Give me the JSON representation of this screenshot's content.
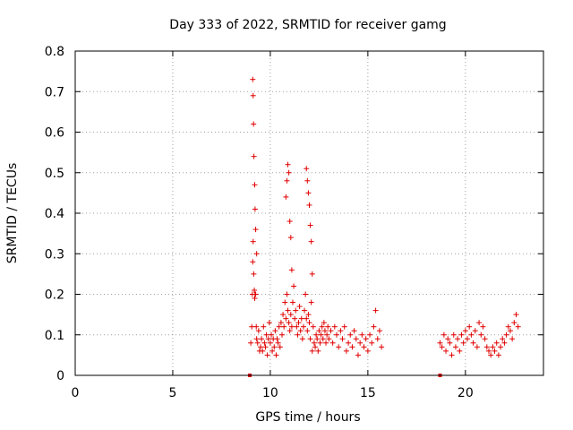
{
  "chart_data": {
    "type": "scatter",
    "title": "Day 333 of 2022, SRMTID for receiver gamg",
    "xlabel": "GPS time / hours",
    "ylabel": "SRMTID / TECUs",
    "xlim": [
      0,
      24
    ],
    "ylim": [
      0,
      0.8
    ],
    "xticks": [
      0,
      5,
      10,
      15,
      20
    ],
    "xtick_labels": [
      "0",
      "5",
      "10",
      "15",
      "20"
    ],
    "yticks": [
      0,
      0.1,
      0.2,
      0.3,
      0.4,
      0.5,
      0.6,
      0.7,
      0.8
    ],
    "ytick_labels": [
      "0",
      "0.1",
      "0.2",
      "0.3",
      "0.4",
      "0.5",
      "0.6",
      "0.7",
      "0.8"
    ],
    "grid": true,
    "marker_color": "#e00000",
    "series": [
      {
        "name": "SRMTID",
        "x": [
          9.0,
          9.05,
          9.08,
          9.1,
          9.12,
          9.15,
          9.18,
          9.2,
          9.22,
          9.25,
          9.28,
          9.3,
          9.35,
          9.4,
          9.45,
          9.5,
          9.55,
          9.6,
          9.65,
          9.7,
          9.75,
          9.8,
          9.85,
          9.9,
          9.95,
          10.0,
          10.05,
          10.1,
          10.15,
          10.2,
          10.25,
          10.3,
          10.35,
          10.4,
          10.45,
          10.5,
          10.55,
          10.6,
          10.65,
          10.7,
          10.75,
          10.8,
          10.85,
          10.9,
          10.95,
          11.0,
          11.05,
          11.1,
          11.15,
          11.2,
          11.25,
          11.3,
          11.35,
          11.4,
          11.45,
          11.5,
          11.55,
          11.6,
          11.65,
          11.7,
          11.75,
          11.8,
          11.85,
          11.9,
          11.95,
          12.0,
          12.05,
          12.1,
          12.15,
          12.2,
          12.25,
          12.3,
          12.35,
          12.4,
          12.45,
          12.5,
          12.55,
          12.6,
          12.65,
          12.7,
          12.75,
          12.8,
          12.85,
          12.9,
          12.95,
          13.0,
          13.1,
          13.2,
          13.3,
          13.4,
          13.5,
          13.6,
          13.7,
          13.8,
          13.9,
          14.0,
          14.1,
          14.2,
          14.3,
          14.4,
          14.5,
          14.6,
          14.7,
          14.8,
          14.9,
          15.0,
          15.1,
          15.2,
          15.3,
          15.4,
          15.5,
          15.6,
          15.7,
          18.7,
          18.8,
          18.9,
          19.0,
          19.1,
          19.2,
          19.3,
          19.4,
          19.5,
          19.6,
          19.7,
          19.8,
          19.9,
          20.0,
          20.1,
          20.2,
          20.3,
          20.4,
          20.5,
          20.6,
          20.7,
          20.8,
          20.9,
          21.0,
          21.1,
          21.2,
          21.3,
          21.4,
          21.5,
          21.6,
          21.7,
          21.8,
          21.9,
          22.0,
          22.1,
          22.2,
          22.3,
          22.4,
          22.5,
          22.6,
          22.7,
          9.1,
          9.12,
          9.14,
          9.16,
          9.2,
          9.22,
          9.25,
          9.3,
          10.8,
          10.85,
          10.9,
          10.95,
          11.0,
          11.05,
          11.1,
          11.85,
          11.9,
          11.95,
          12.0,
          12.05,
          12.1,
          12.15,
          8.95,
          18.7
        ],
        "y": [
          0.08,
          0.12,
          0.2,
          0.28,
          0.33,
          0.25,
          0.21,
          0.19,
          0.2,
          0.2,
          0.12,
          0.09,
          0.08,
          0.11,
          0.06,
          0.07,
          0.09,
          0.06,
          0.12,
          0.08,
          0.07,
          0.1,
          0.05,
          0.09,
          0.13,
          0.08,
          0.1,
          0.06,
          0.09,
          0.07,
          0.11,
          0.05,
          0.09,
          0.08,
          0.12,
          0.07,
          0.13,
          0.1,
          0.15,
          0.12,
          0.18,
          0.14,
          0.2,
          0.16,
          0.13,
          0.11,
          0.15,
          0.12,
          0.18,
          0.22,
          0.14,
          0.16,
          0.12,
          0.1,
          0.13,
          0.17,
          0.11,
          0.14,
          0.09,
          0.12,
          0.16,
          0.2,
          0.14,
          0.11,
          0.15,
          0.13,
          0.09,
          0.18,
          0.06,
          0.12,
          0.08,
          0.07,
          0.1,
          0.09,
          0.06,
          0.11,
          0.08,
          0.1,
          0.12,
          0.09,
          0.13,
          0.11,
          0.08,
          0.1,
          0.12,
          0.09,
          0.11,
          0.08,
          0.12,
          0.1,
          0.07,
          0.11,
          0.09,
          0.12,
          0.06,
          0.08,
          0.1,
          0.07,
          0.11,
          0.09,
          0.05,
          0.08,
          0.1,
          0.07,
          0.09,
          0.06,
          0.1,
          0.08,
          0.12,
          0.16,
          0.09,
          0.11,
          0.07,
          0.08,
          0.07,
          0.1,
          0.06,
          0.09,
          0.08,
          0.05,
          0.1,
          0.07,
          0.09,
          0.06,
          0.1,
          0.08,
          0.11,
          0.09,
          0.12,
          0.1,
          0.08,
          0.11,
          0.07,
          0.13,
          0.1,
          0.12,
          0.09,
          0.07,
          0.06,
          0.05,
          0.07,
          0.06,
          0.08,
          0.05,
          0.07,
          0.09,
          0.08,
          0.1,
          0.12,
          0.11,
          0.09,
          0.13,
          0.15,
          0.12,
          0.73,
          0.69,
          0.62,
          0.54,
          0.47,
          0.41,
          0.36,
          0.3,
          0.44,
          0.48,
          0.52,
          0.5,
          0.38,
          0.34,
          0.26,
          0.51,
          0.48,
          0.45,
          0.42,
          0.37,
          0.33,
          0.25,
          0.0,
          0.0
        ]
      }
    ]
  }
}
